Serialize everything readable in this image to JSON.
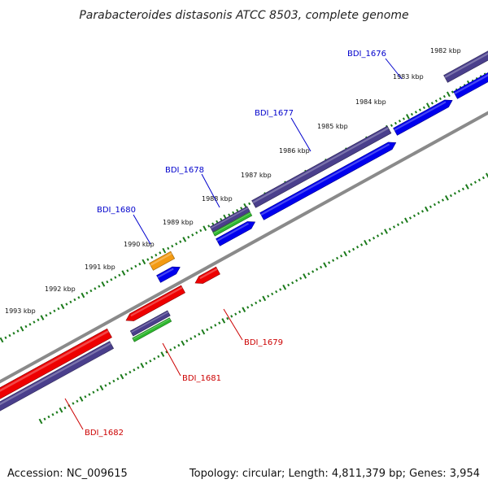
{
  "title": "Parabacteroides distasonis ATCC 8503, complete genome",
  "footer": {
    "accession": "Accession: NC_009615",
    "summary": "Topology: circular; Length: 4,811,379 bp; Genes: 3,954"
  },
  "colors": {
    "blue_gene": "#0000ee",
    "red_gene": "#ee0000",
    "purple_gene": "#4a3f8c",
    "green_gene": "#2eb82e",
    "orange_gene": "#f39a12",
    "backbone": "#8a8a8a",
    "tick": "#1a7a1a",
    "plus_label": "#0000cc",
    "minus_label": "#cc0000"
  },
  "kbp_ticks": [
    "1982 kbp",
    "1983 kbp",
    "1984 kbp",
    "1985 kbp",
    "1986 kbp",
    "1987 kbp",
    "1988 kbp",
    "1989 kbp",
    "1990 kbp",
    "1991 kbp",
    "1992 kbp",
    "1993 kbp"
  ],
  "genes": [
    {
      "name": "BDI_1676",
      "strand": "plus"
    },
    {
      "name": "BDI_1677",
      "strand": "plus"
    },
    {
      "name": "BDI_1678",
      "strand": "plus"
    },
    {
      "name": "BDI_1680",
      "strand": "plus"
    },
    {
      "name": "BDI_1679",
      "strand": "minus"
    },
    {
      "name": "BDI_1681",
      "strand": "minus"
    },
    {
      "name": "BDI_1682",
      "strand": "minus"
    }
  ]
}
